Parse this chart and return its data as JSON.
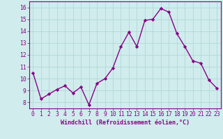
{
  "x": [
    0,
    1,
    2,
    3,
    4,
    5,
    6,
    7,
    8,
    9,
    10,
    11,
    12,
    13,
    14,
    15,
    16,
    17,
    18,
    19,
    20,
    21,
    22,
    23
  ],
  "y": [
    10.5,
    8.3,
    8.7,
    9.1,
    9.4,
    8.8,
    9.3,
    7.8,
    9.6,
    10.0,
    10.9,
    12.7,
    13.9,
    12.7,
    14.9,
    15.0,
    15.9,
    15.6,
    13.8,
    12.7,
    11.5,
    11.3,
    9.9,
    9.2
  ],
  "line_color": "#880088",
  "marker": "D",
  "marker_size": 2.2,
  "xlabel": "Windchill (Refroidissement éolien,°C)",
  "xlabel_fontsize": 6.0,
  "xtick_labels": [
    "0",
    "1",
    "2",
    "3",
    "4",
    "5",
    "6",
    "7",
    "8",
    "9",
    "10",
    "11",
    "12",
    "13",
    "14",
    "15",
    "16",
    "17",
    "18",
    "19",
    "20",
    "21",
    "22",
    "23"
  ],
  "ytick_labels": [
    "8",
    "9",
    "10",
    "11",
    "12",
    "13",
    "14",
    "15",
    "16"
  ],
  "ylim": [
    7.5,
    16.5
  ],
  "xlim": [
    -0.5,
    23.5
  ],
  "grid_color": "#b0d8d8",
  "background_color": "#d0ecec",
  "tick_fontsize": 5.8,
  "linewidth": 1.0
}
